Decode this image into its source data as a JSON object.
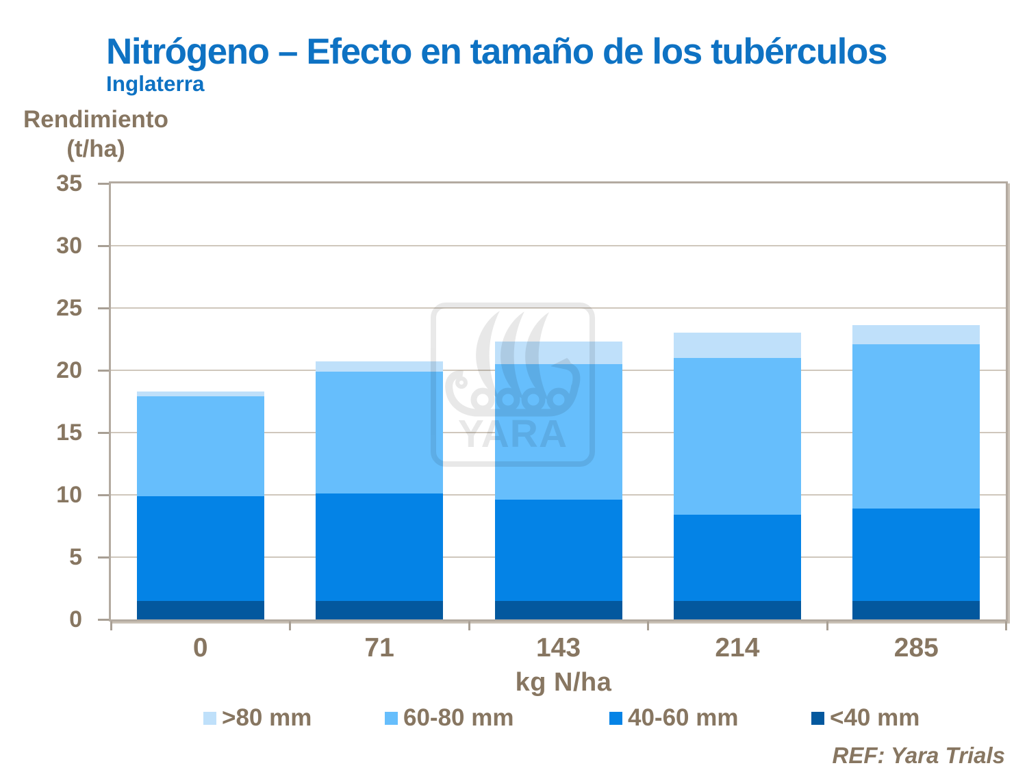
{
  "slide": {
    "reference": "REF: Yara Trials",
    "watermark_text": "YARA",
    "title_color": "#0E72C3",
    "text_color": "#877661"
  },
  "chart_data": {
    "type": "bar",
    "stacked": true,
    "title": "Nitrógeno – Efecto en tamaño de los tubérculos",
    "subtitle": "Inglaterra",
    "categories": [
      "0",
      "71",
      "143",
      "214",
      "285"
    ],
    "series": [
      {
        "name": "<40 mm",
        "color": "#03589E",
        "values": [
          1.5,
          1.5,
          1.5,
          1.5,
          1.5
        ]
      },
      {
        "name": "40-60 mm",
        "color": "#0483E6",
        "values": [
          8.4,
          8.6,
          8.1,
          6.9,
          7.4
        ]
      },
      {
        "name": "60-80 mm",
        "color": "#66BEFC",
        "values": [
          8.0,
          9.8,
          10.9,
          12.6,
          13.2
        ]
      },
      {
        "name": ">80 mm",
        "color": "#BFE0FA",
        "values": [
          0.4,
          0.8,
          1.8,
          2.0,
          1.5
        ]
      }
    ],
    "legend": [
      {
        "label": ">80 mm",
        "color": "#BFE0FA"
      },
      {
        "label": "60-80 mm",
        "color": "#66BEFC"
      },
      {
        "label": "40-60 mm",
        "color": "#0483E6"
      },
      {
        "label": "<40 mm",
        "color": "#03589E"
      }
    ],
    "ylim": [
      0,
      35
    ],
    "yticks": [
      0,
      5,
      10,
      15,
      20,
      25,
      30,
      35
    ],
    "ylabel_lines": [
      "Rendimiento",
      "(t/ha)"
    ],
    "xlabel": "kg N/ha",
    "grid": "horizontal",
    "legend_position": "bottom"
  }
}
